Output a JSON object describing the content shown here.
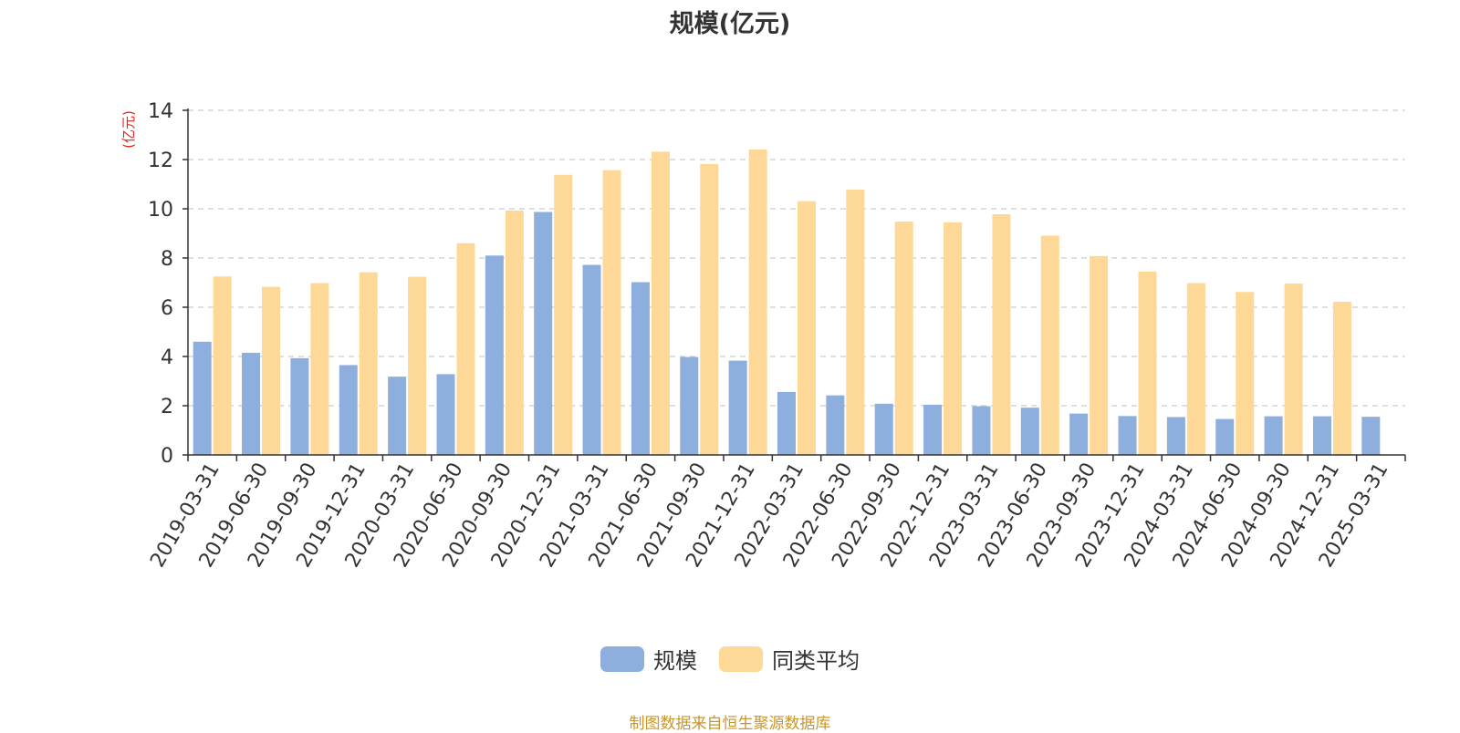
{
  "chart_data": {
    "type": "bar",
    "title": "规模(亿元)",
    "ylabel": "(亿元)",
    "xlabel": "",
    "ylim": [
      0,
      14
    ],
    "yticks": [
      0,
      2,
      4,
      6,
      8,
      10,
      12,
      14
    ],
    "grid": true,
    "legend_position": "bottom",
    "categories": [
      "2019-03-31",
      "2019-06-30",
      "2019-09-30",
      "2019-12-31",
      "2020-03-31",
      "2020-06-30",
      "2020-09-30",
      "2020-12-31",
      "2021-03-31",
      "2021-06-30",
      "2021-09-30",
      "2021-12-31",
      "2022-03-31",
      "2022-06-30",
      "2022-09-30",
      "2022-12-31",
      "2023-03-31",
      "2023-06-30",
      "2023-09-30",
      "2023-12-31",
      "2024-03-31",
      "2024-06-30",
      "2024-09-30",
      "2024-12-31",
      "2025-03-31"
    ],
    "series": [
      {
        "name": "规模",
        "color": "#8eaede",
        "values": [
          4.6,
          4.15,
          3.93,
          3.65,
          3.18,
          3.28,
          8.1,
          9.87,
          7.72,
          7.02,
          3.98,
          3.83,
          2.56,
          2.42,
          2.08,
          2.04,
          1.98,
          1.92,
          1.68,
          1.58,
          1.54,
          1.46,
          1.57,
          1.57,
          1.55
        ]
      },
      {
        "name": "同类平均",
        "color": "#fdd896",
        "values": [
          7.25,
          6.83,
          6.98,
          7.42,
          7.24,
          8.6,
          9.93,
          11.38,
          11.57,
          12.32,
          11.82,
          12.41,
          10.31,
          10.78,
          9.48,
          9.45,
          9.78,
          8.91,
          8.08,
          7.45,
          6.98,
          6.62,
          6.96,
          6.22,
          null
        ]
      }
    ]
  },
  "legend": {
    "items": [
      {
        "label": "规模",
        "color": "#8eaede"
      },
      {
        "label": "同类平均",
        "color": "#fdd896"
      }
    ]
  },
  "footer": {
    "source": "制图数据来自恒生聚源数据库"
  },
  "colors": {
    "axis_label": "#e3231c",
    "axis_line": "#333333",
    "grid": "#cccccc",
    "source_text": "#c8962a"
  }
}
